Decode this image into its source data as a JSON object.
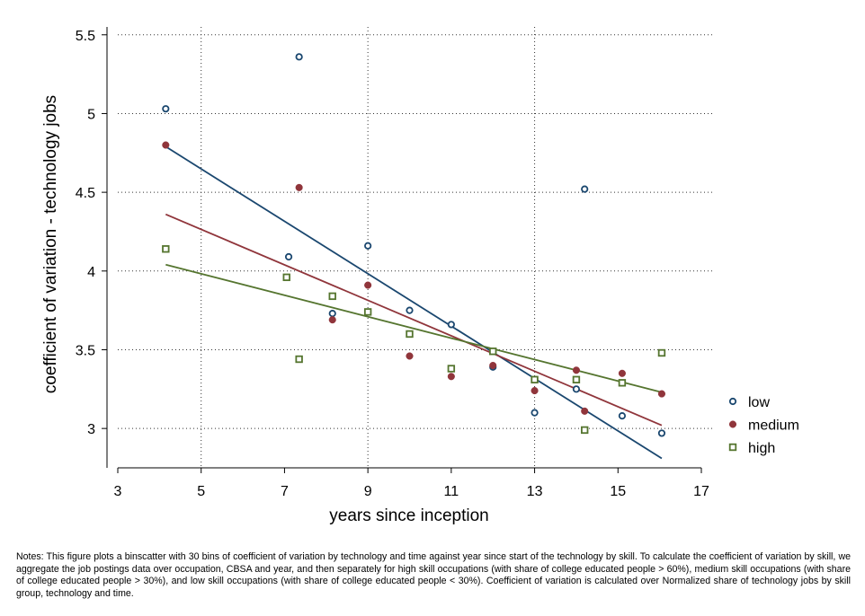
{
  "chart_data": {
    "type": "scatter",
    "xlabel": "years since inception",
    "ylabel": "coefficient of variation - technology jobs",
    "xlim": [
      3,
      17
    ],
    "ylim": [
      2.75,
      5.55
    ],
    "xticks": [
      3,
      5,
      7,
      9,
      11,
      13,
      15,
      17
    ],
    "yticks": [
      3,
      3.5,
      4,
      4.5,
      5,
      5.5
    ],
    "xtick_labels": [
      "3",
      "5",
      "7",
      "9",
      "11",
      "13",
      "15",
      "17"
    ],
    "ytick_labels": [
      "3",
      "3.5",
      "4",
      "4.5",
      "5",
      "5.5"
    ],
    "grid": "horizontal dotted",
    "legend_position": "right",
    "series": [
      {
        "name": "low",
        "color": "#1a476f",
        "marker": "hollow-circle",
        "points": [
          [
            4.15,
            5.03
          ],
          [
            7.1,
            4.09
          ],
          [
            7.35,
            5.36
          ],
          [
            8.15,
            3.73
          ],
          [
            9.0,
            4.16
          ],
          [
            10.0,
            3.75
          ],
          [
            11.0,
            3.66
          ],
          [
            12.0,
            3.39
          ],
          [
            13.0,
            3.1
          ],
          [
            14.0,
            3.25
          ],
          [
            14.2,
            4.52
          ],
          [
            15.1,
            3.08
          ],
          [
            16.05,
            2.97
          ]
        ],
        "fit": [
          [
            4.15,
            4.79
          ],
          [
            16.05,
            2.81
          ]
        ]
      },
      {
        "name": "medium",
        "color": "#90353b",
        "marker": "filled-circle",
        "points": [
          [
            4.15,
            4.8
          ],
          [
            7.35,
            4.53
          ],
          [
            8.15,
            3.69
          ],
          [
            9.0,
            3.91
          ],
          [
            10.0,
            3.46
          ],
          [
            11.0,
            3.33
          ],
          [
            12.0,
            3.4
          ],
          [
            13.0,
            3.24
          ],
          [
            14.0,
            3.37
          ],
          [
            14.2,
            3.11
          ],
          [
            15.1,
            3.35
          ],
          [
            16.05,
            3.22
          ]
        ],
        "fit": [
          [
            4.15,
            4.36
          ],
          [
            16.05,
            3.02
          ]
        ]
      },
      {
        "name": "high",
        "color": "#55752f",
        "marker": "hollow-square",
        "points": [
          [
            4.15,
            4.14
          ],
          [
            7.05,
            3.96
          ],
          [
            7.35,
            3.44
          ],
          [
            8.15,
            3.84
          ],
          [
            9.0,
            3.74
          ],
          [
            10.0,
            3.6
          ],
          [
            11.0,
            3.38
          ],
          [
            12.0,
            3.49
          ],
          [
            13.0,
            3.31
          ],
          [
            14.0,
            3.31
          ],
          [
            14.2,
            2.99
          ],
          [
            15.1,
            3.29
          ],
          [
            16.05,
            3.48
          ]
        ],
        "fit": [
          [
            4.15,
            4.04
          ],
          [
            16.05,
            3.23
          ]
        ]
      }
    ]
  },
  "notes": "Notes: This figure plots a binscatter with 30 bins of coefficient of variation by technology and time against year since start of the technology by skill. To calculate the coefficient of variation by skill, we aggregate the job postings data over occupation, CBSA and year, and then separately for high skill occupations (with share of college educated people > 60%), medium skill occupations (with share of college educated people > 30%), and low skill occupations (with share of college educated people < 30%). Coefficient of variation is calculated over Normalized share of technology jobs by skill group, technology and time."
}
